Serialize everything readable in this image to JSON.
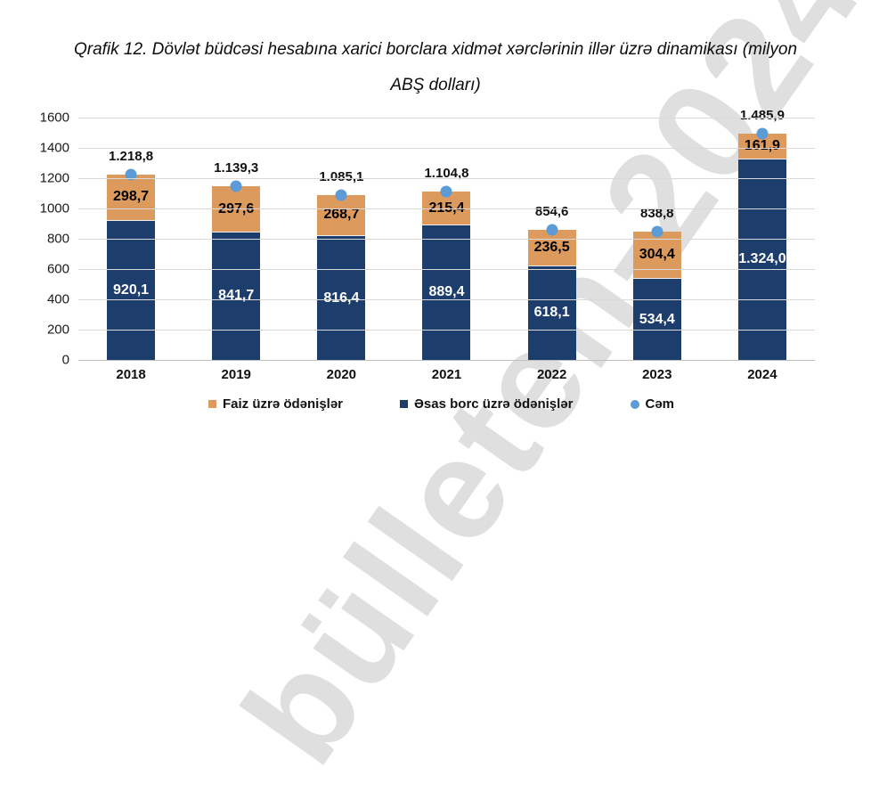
{
  "header": {
    "title_line1": "Qrafik 12. Dövlət büdcəsi hesabına xarici borclara xidmət xərclərinin illər üzrə dinamikası (milyon",
    "title_line2": "ABŞ dolları)"
  },
  "watermark": {
    "text": "bülleten-2024"
  },
  "colors": {
    "interest_orange": "#DC9A5D",
    "principal_navy": "#1D3D6C",
    "total_dot_blue": "#5C9BD6",
    "gridline": "#D9D9D9",
    "axis_line": "#BFBFBF"
  },
  "chart_data": {
    "type": "bar",
    "subtype": "stacked-columns-with-total-markers",
    "title": "Qrafik 12. Dövlət büdcəsi hesabına xarici borclara xidmət xərclərinin illər üzrə dinamikası (milyon ABŞ dolları)",
    "categories": [
      "2018",
      "2019",
      "2020",
      "2021",
      "2022",
      "2023",
      "2024"
    ],
    "series": [
      {
        "name": "Faiz üzrə ödənişlər",
        "color": "#DC9A5D",
        "label_color": "#000000",
        "values": [
          298.7,
          297.6,
          268.7,
          215.4,
          236.5,
          304.4,
          161.9
        ],
        "labels": [
          "298,7",
          "297,6",
          "268,7",
          "215,4",
          "236,5",
          "304,4",
          "161,9"
        ]
      },
      {
        "name": "Əsas borc üzrə ödənişlər",
        "color": "#1D3D6C",
        "label_color": "#FFFFFF",
        "values": [
          920.1,
          841.7,
          816.4,
          889.4,
          618.1,
          534.4,
          1324.0
        ],
        "labels": [
          "920,1",
          "841,7",
          "816,4",
          "889,4",
          "618,1",
          "534,4",
          "1.324,0"
        ]
      }
    ],
    "totals": {
      "name": "Cəm",
      "color": "#5C9BD6",
      "values": [
        1218.8,
        1139.3,
        1085.1,
        1104.8,
        854.6,
        838.8,
        1485.9
      ],
      "labels": [
        "1.218,8",
        "1.139,3",
        "1.085,1",
        "1.104,8",
        "854,6",
        "838,8",
        "1.485,9"
      ]
    },
    "ylim": [
      0,
      1600
    ],
    "yticks": [
      "0",
      "200",
      "400",
      "600",
      "800",
      "1000",
      "1200",
      "1400",
      "1600"
    ],
    "grid": "horizontal",
    "legend_position": "bottom"
  }
}
